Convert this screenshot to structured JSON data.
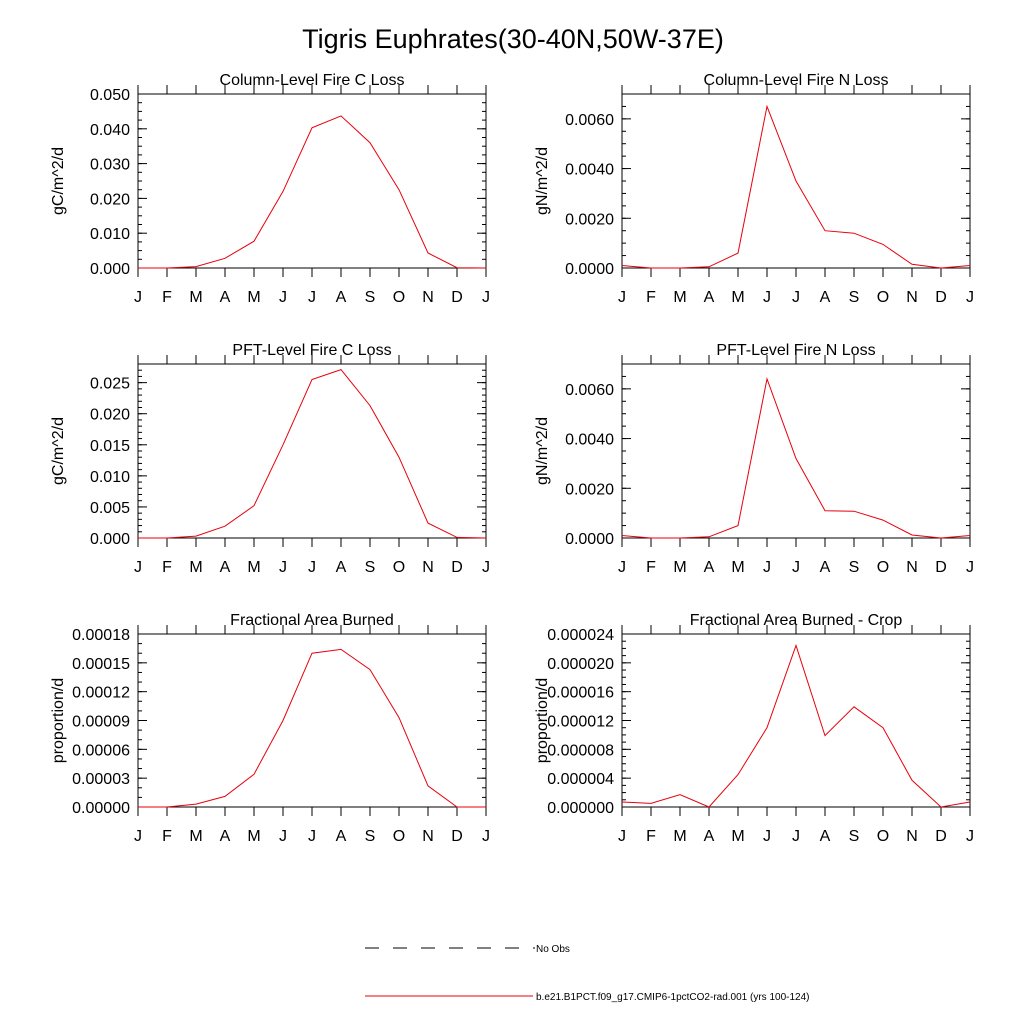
{
  "figure": {
    "title": "Tigris Euphrates(30-40N,50W-37E)",
    "line_color": "#e8000b",
    "obs_color": "#000000"
  },
  "legend": {
    "placement": "bottom-center",
    "items": [
      {
        "label": "No Obs",
        "style": "dashed",
        "color": "#000000"
      },
      {
        "label": "b.e21.B1PCT.f09_g17.CMIP6-1pctCO2-rad.001 (yrs 100-124)",
        "style": "solid",
        "color": "#e8000b"
      }
    ]
  },
  "chart_data": [
    {
      "type": "line",
      "title": "Column-Level Fire C Loss",
      "ylabel": "gC/m^2/d",
      "x_tick_labels": [
        "J",
        "F",
        "M",
        "A",
        "M",
        "J",
        "J",
        "A",
        "S",
        "O",
        "N",
        "D",
        "J"
      ],
      "ylim": [
        0,
        0.05
      ],
      "y_ticks": [
        "0.000",
        "0.010",
        "0.020",
        "0.030",
        "0.040",
        "0.050"
      ],
      "y_minor_step": 0.0025,
      "series": [
        {
          "values": [
            0.0,
            0.0,
            0.0004,
            0.0028,
            0.0077,
            0.022,
            0.0403,
            0.0437,
            0.036,
            0.0225,
            0.0043,
            0.0001,
            0.0
          ]
        }
      ]
    },
    {
      "type": "line",
      "title": "Column-Level Fire N Loss",
      "ylabel": "gN/m^2/d",
      "x_tick_labels": [
        "J",
        "F",
        "M",
        "A",
        "M",
        "J",
        "J",
        "A",
        "S",
        "O",
        "N",
        "D",
        "J"
      ],
      "ylim": [
        0,
        0.007
      ],
      "y_ticks": [
        "0.0000",
        "0.0020",
        "0.0040",
        "0.0060"
      ],
      "y_minor_step": 0.0005,
      "series": [
        {
          "values": [
            0.0001,
            0.0,
            0.0,
            5e-05,
            0.0006,
            0.0065,
            0.0035,
            0.0015,
            0.0014,
            0.00095,
            0.00015,
            0.0,
            0.0001
          ]
        }
      ]
    },
    {
      "type": "line",
      "title": "PFT-Level Fire C Loss",
      "ylabel": "gC/m^2/d",
      "x_tick_labels": [
        "J",
        "F",
        "M",
        "A",
        "M",
        "J",
        "J",
        "A",
        "S",
        "O",
        "N",
        "D",
        "J"
      ],
      "ylim": [
        0,
        0.028
      ],
      "y_ticks": [
        "0.000",
        "0.005",
        "0.010",
        "0.015",
        "0.020",
        "0.025"
      ],
      "y_minor_step": 0.001,
      "series": [
        {
          "values": [
            0.0,
            0.0,
            0.0003,
            0.0019,
            0.0052,
            0.015,
            0.0255,
            0.0271,
            0.0213,
            0.013,
            0.0024,
            0.0001,
            0.0
          ]
        }
      ]
    },
    {
      "type": "line",
      "title": "PFT-Level Fire N Loss",
      "ylabel": "gN/m^2/d",
      "x_tick_labels": [
        "J",
        "F",
        "M",
        "A",
        "M",
        "J",
        "J",
        "A",
        "S",
        "O",
        "N",
        "D",
        "J"
      ],
      "ylim": [
        0,
        0.007
      ],
      "y_ticks": [
        "0.0000",
        "0.0020",
        "0.0040",
        "0.0060"
      ],
      "y_minor_step": 0.0005,
      "series": [
        {
          "values": [
            0.0001,
            0.0,
            0.0,
            5e-05,
            0.0005,
            0.0064,
            0.0032,
            0.0011,
            0.00108,
            0.00072,
            0.00012,
            0.0,
            0.0001
          ]
        }
      ]
    },
    {
      "type": "line",
      "title": "Fractional Area Burned",
      "ylabel": "proportion/d",
      "x_tick_labels": [
        "J",
        "F",
        "M",
        "A",
        "M",
        "J",
        "J",
        "A",
        "S",
        "O",
        "N",
        "D",
        "J"
      ],
      "ylim": [
        0,
        0.00018
      ],
      "y_ticks": [
        "0.00000",
        "0.00003",
        "0.00006",
        "0.00009",
        "0.00012",
        "0.00015",
        "0.00018"
      ],
      "y_minor_step": 1e-05,
      "series": [
        {
          "values": [
            0.0,
            0.0,
            3e-06,
            1.1e-05,
            3.4e-05,
            9e-05,
            0.00016,
            0.000164,
            0.000143,
            9.3e-05,
            2.2e-05,
            0.0,
            0.0
          ]
        }
      ]
    },
    {
      "type": "line",
      "title": "Fractional Area Burned - Crop",
      "ylabel": "proportion/d",
      "x_tick_labels": [
        "J",
        "F",
        "M",
        "A",
        "M",
        "J",
        "J",
        "A",
        "S",
        "O",
        "N",
        "D",
        "J"
      ],
      "ylim": [
        0,
        2.4e-05
      ],
      "y_ticks": [
        "0.000000",
        "0.000004",
        "0.000008",
        "0.000012",
        "0.000016",
        "0.000020",
        "0.000024"
      ],
      "y_minor_step": 1e-06,
      "series": [
        {
          "values": [
            7e-07,
            5e-07,
            1.7e-06,
            0.0,
            4.5e-06,
            1.1e-05,
            2.24e-05,
            9.9e-06,
            1.39e-05,
            1.1e-05,
            3.7e-06,
            0.0,
            7e-07
          ]
        }
      ]
    }
  ]
}
